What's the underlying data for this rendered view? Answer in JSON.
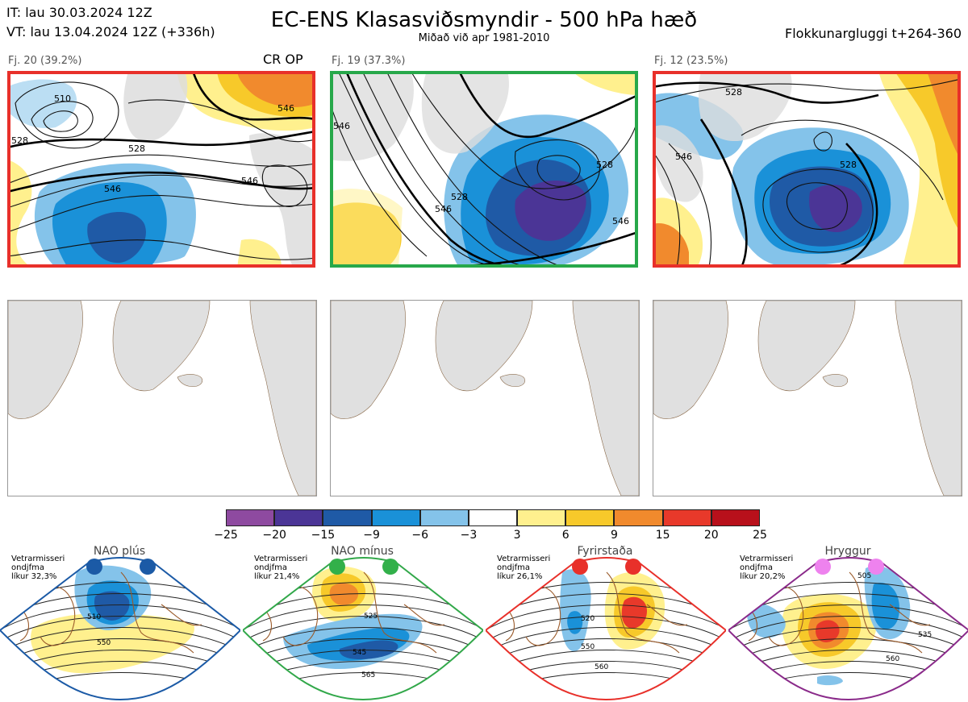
{
  "header": {
    "it": "IT: lau 30.03.2024 12Z",
    "vt": "VT: lau 13.04.2024 12Z  (+336h)",
    "title": "EC-ENS Klasasviðsmyndir - 500 hPa hæð",
    "subtitle": "Miðað við apr 1981-2010",
    "window": "Flokkunargluggi t+264-360"
  },
  "clusters": [
    {
      "label": "Fj. 20 (39.2%)",
      "tag": "CR OP",
      "frame_color": "#e8302a",
      "contour_labels": [
        "510",
        "528",
        "546",
        "546",
        "528",
        "546"
      ]
    },
    {
      "label": "Fj. 19 (37.3%)",
      "tag": "",
      "frame_color": "#27a84a",
      "contour_labels": [
        "546",
        "528",
        "546",
        "528",
        "546"
      ]
    },
    {
      "label": "Fj. 12 (23.5%)",
      "tag": "",
      "frame_color": "#e8302a",
      "contour_labels": [
        "528",
        "546",
        "528"
      ]
    }
  ],
  "colorbar": {
    "ticks": [
      "−25",
      "−20",
      "−15",
      "−9",
      "−6",
      "−3",
      "3",
      "6",
      "9",
      "15",
      "20",
      "25"
    ],
    "colors": [
      "#8e4aa0",
      "#4b3596",
      "#1f5aa6",
      "#1a91d8",
      "#84c3ea",
      "#ffffff",
      "#fff08e",
      "#f7c92a",
      "#f18a2d",
      "#e8392a",
      "#b8101b"
    ]
  },
  "regimes": [
    {
      "title": "NAO plús",
      "text": [
        "Vetrarmisseri",
        "ondjfma",
        "líkur 32,3%"
      ],
      "color": "#1b5aa6",
      "dot_color": "#1b5aa6",
      "contours": [
        "510",
        "550"
      ]
    },
    {
      "title": "NAO mínus",
      "text": [
        "Vetrarmisseri",
        "ondjfma",
        "líkur 21,4%"
      ],
      "color": "#32a84a",
      "dot_color": "#32b04a",
      "contours": [
        "525",
        "545",
        "565"
      ]
    },
    {
      "title": "Fyrirstaða",
      "text": [
        "Vetrarmisseri",
        "ondjfma",
        "líkur 26,1%"
      ],
      "color": "#e8302a",
      "dot_color": "#e8302a",
      "contours": [
        "520",
        "550",
        "560"
      ]
    },
    {
      "title": "Hryggur",
      "text": [
        "Vetrarmisseri",
        "ondjfma",
        "líkur 20,2%"
      ],
      "color": "#8a2a8a",
      "dot_color": "#ee82ee",
      "contours": [
        "505",
        "535",
        "560"
      ]
    }
  ]
}
